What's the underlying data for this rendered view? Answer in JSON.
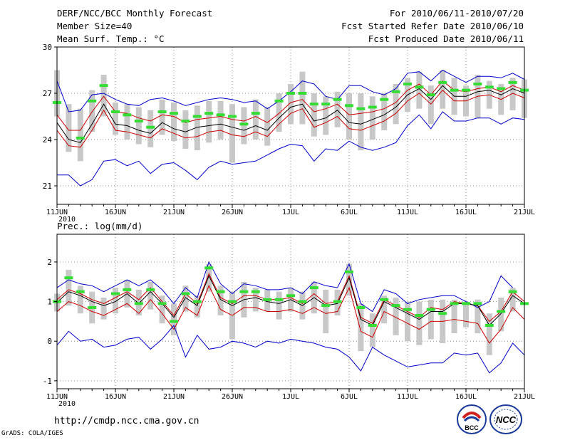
{
  "header": {
    "title": "DERF/NCC/BCC Monthly Forecast",
    "member": "Member Size=40",
    "var1": "Mean Surf. Temp.: °C",
    "period": "For 2010/06/11-2010/07/20",
    "started": "Fcst Started Refer Date 2010/06/10",
    "produced": "Fcst Produced Date 2010/06/11"
  },
  "footer": {
    "url": "http://cmdp.ncc.cma.gov.cn",
    "grads": "GrADS: COLA/IGES",
    "logo1": "BCC",
    "logo2": "NCC"
  },
  "colors": {
    "max": "#0000cc",
    "mean": "#000000",
    "p_hi": "#cc0000",
    "obs": "#33dd33",
    "box": "#c8c8c8",
    "grid": "#888888"
  },
  "chart_data": [
    {
      "type": "line",
      "title": "Mean Surf. Temp.: °C",
      "xlabel": "",
      "ylabel": "°C",
      "ylim": [
        19.8,
        30
      ],
      "yticks": [
        21,
        24,
        27,
        30
      ],
      "xlim": [
        1,
        41
      ],
      "xticks": [
        1,
        6,
        11,
        16,
        21,
        26,
        31,
        36,
        41
      ],
      "xtick_labels": [
        "11JUN",
        "16JUN",
        "21JUN",
        "26JUN",
        "1JUL",
        "6JUL",
        "11JUL",
        "16JUL",
        "21JUL"
      ],
      "year_label": "2010",
      "grid": true,
      "series": [
        {
          "name": "max",
          "values": [
            27.8,
            25.8,
            25.9,
            26.9,
            27.0,
            26.6,
            26.3,
            26.2,
            26.6,
            26.7,
            26.5,
            26.2,
            26.4,
            26.6,
            26.7,
            26.6,
            26.4,
            26.5,
            26.0,
            26.5,
            27.1,
            27.8,
            27.6,
            26.8,
            26.6,
            27.5,
            27.5,
            27.1,
            26.9,
            27.3,
            28.3,
            28.4,
            27.8,
            28.5,
            28.1,
            27.7,
            28.1,
            28.1,
            28.0,
            28.3,
            27.9
          ]
        },
        {
          "name": "p_hi",
          "values": [
            25.6,
            24.6,
            24.6,
            25.8,
            26.8,
            25.8,
            25.7,
            25.4,
            25.2,
            25.6,
            25.5,
            25.1,
            25.3,
            25.4,
            25.5,
            25.3,
            25.2,
            25.5,
            25.1,
            25.7,
            26.4,
            26.6,
            25.8,
            26.0,
            26.3,
            25.6,
            25.7,
            25.8,
            26.0,
            26.4,
            27.2,
            27.6,
            26.9,
            27.8,
            27.2,
            27.1,
            27.3,
            27.4,
            27.1,
            27.5,
            27.2
          ]
        },
        {
          "name": "mean",
          "values": [
            25.1,
            24.0,
            23.8,
            25.0,
            26.3,
            25.0,
            24.9,
            24.6,
            24.4,
            25.1,
            24.7,
            24.5,
            24.8,
            24.9,
            25.0,
            24.8,
            24.6,
            24.9,
            24.6,
            25.4,
            26.1,
            26.3,
            25.2,
            25.4,
            25.9,
            25.1,
            25.0,
            25.3,
            25.6,
            26.1,
            26.9,
            27.3,
            26.6,
            27.5,
            26.8,
            26.8,
            27.1,
            27.2,
            26.9,
            27.3,
            27.0
          ]
        },
        {
          "name": "p_lo",
          "values": [
            24.6,
            23.6,
            23.5,
            24.6,
            25.9,
            24.6,
            24.5,
            24.3,
            24.1,
            24.7,
            24.4,
            24.1,
            24.2,
            24.5,
            24.6,
            24.3,
            24.2,
            24.5,
            24.2,
            25.0,
            25.7,
            26.0,
            24.8,
            25.1,
            25.5,
            24.7,
            24.6,
            24.9,
            25.2,
            25.7,
            26.5,
            27.0,
            26.3,
            27.2,
            26.5,
            26.5,
            26.8,
            26.9,
            26.6,
            27.0,
            26.7
          ]
        },
        {
          "name": "min",
          "values": [
            21.7,
            21.7,
            21.0,
            21.4,
            22.6,
            22.7,
            22.3,
            22.6,
            21.8,
            22.4,
            22.5,
            22.0,
            21.4,
            22.2,
            22.6,
            22.4,
            22.5,
            22.6,
            23.0,
            23.4,
            23.7,
            23.6,
            22.6,
            23.4,
            23.3,
            23.9,
            23.5,
            23.3,
            23.5,
            23.8,
            24.9,
            25.6,
            24.7,
            25.8,
            25.2,
            25.2,
            25.4,
            25.4,
            25.0,
            25.4,
            25.3
          ]
        },
        {
          "name": "obs",
          "values": [
            26.4,
            null,
            24.1,
            26.5,
            27.5,
            25.8,
            25.6,
            25.2,
            24.8,
            25.8,
            25.7,
            25.2,
            25.5,
            25.7,
            25.6,
            25.5,
            25.0,
            25.7,
            null,
            26.5,
            27.0,
            27.0,
            26.3,
            26.3,
            26.6,
            26.2,
            26.0,
            26.1,
            26.6,
            27.1,
            27.6,
            27.4,
            26.9,
            27.7,
            27.2,
            27.2,
            27.6,
            27.4,
            27.3,
            27.7,
            27.2
          ]
        }
      ],
      "box_low": [
        25.5,
        23.2,
        22.6,
        24.5,
        25.5,
        24.3,
        24.0,
        23.7,
        23.5,
        24.3,
        23.9,
        23.4,
        23.3,
        23.8,
        24.0,
        22.5,
        23.7,
        24.0,
        23.6,
        24.5,
        25.0,
        25.0,
        24.2,
        24.3,
        24.8,
        24.0,
        23.3,
        24.0,
        24.6,
        25.0,
        25.8,
        26.0,
        25.0,
        26.0,
        25.6,
        25.5,
        25.4,
        26.0,
        25.6,
        25.9,
        25.4
      ],
      "box_high": [
        28.5,
        26.3,
        26.0,
        27.2,
        28.2,
        26.4,
        26.3,
        26.1,
        25.9,
        26.6,
        26.4,
        25.9,
        26.2,
        26.5,
        26.5,
        26.3,
        26.1,
        26.6,
        26.1,
        27.0,
        27.6,
        28.4,
        27.0,
        26.8,
        27.1,
        27.0,
        27.0,
        26.8,
        27.0,
        27.6,
        28.0,
        28.4,
        27.5,
        28.5,
        28.0,
        27.5,
        28.2,
        27.8,
        27.6,
        28.0,
        27.9
      ]
    },
    {
      "type": "line",
      "title": "Prec.: log(mm/d)",
      "xlabel": "",
      "ylabel": "log(mm/d)",
      "ylim": [
        -1.2,
        2.7
      ],
      "yticks": [
        -1,
        0,
        1,
        2
      ],
      "xlim": [
        1,
        41
      ],
      "xticks": [
        1,
        6,
        11,
        16,
        21,
        26,
        31,
        36,
        41
      ],
      "xtick_labels": [
        "11JUN",
        "16JUN",
        "21JUN",
        "26JUN",
        "1JUL",
        "6JUL",
        "11JUL",
        "16JUL",
        "21JUL"
      ],
      "year_label": "2010",
      "grid": true,
      "series": [
        {
          "name": "max",
          "values": [
            1.35,
            1.55,
            1.45,
            1.4,
            1.25,
            1.4,
            1.55,
            1.4,
            1.55,
            1.3,
            0.95,
            1.35,
            1.1,
            2.0,
            1.45,
            1.2,
            1.45,
            1.4,
            1.3,
            1.3,
            1.35,
            1.2,
            1.5,
            1.4,
            1.35,
            1.95,
            0.95,
            0.75,
            1.3,
            1.2,
            0.95,
            1.05,
            1.1,
            1.15,
            1.15,
            1.0,
            0.85,
            1.0,
            1.65,
            1.35
          ]
        },
        {
          "name": "p_hi",
          "values": [
            1.05,
            1.3,
            1.2,
            1.05,
            0.95,
            1.1,
            1.25,
            1.05,
            1.35,
            1.0,
            0.65,
            1.2,
            0.95,
            1.7,
            1.1,
            0.95,
            1.15,
            1.15,
            1.05,
            1.05,
            1.1,
            0.95,
            1.2,
            0.95,
            1.0,
            1.65,
            0.6,
            0.45,
            1.05,
            0.9,
            0.75,
            0.6,
            0.85,
            0.8,
            1.0,
            0.95,
            0.9,
            0.5,
            0.75,
            1.25,
            1.0
          ]
        },
        {
          "name": "mean",
          "values": [
            0.98,
            1.25,
            1.15,
            1.0,
            0.9,
            1.0,
            1.2,
            0.95,
            1.25,
            0.95,
            0.6,
            1.1,
            0.9,
            1.65,
            1.05,
            0.9,
            1.05,
            1.1,
            1.0,
            0.95,
            1.05,
            0.9,
            1.1,
            0.9,
            0.95,
            1.6,
            0.55,
            0.4,
            1.0,
            0.85,
            0.7,
            0.55,
            0.75,
            0.75,
            0.95,
            0.95,
            0.9,
            0.4,
            0.7,
            1.15,
            0.95
          ]
        },
        {
          "name": "p_lo",
          "values": [
            0.75,
            1.0,
            0.9,
            0.75,
            0.65,
            0.8,
            0.95,
            0.7,
            1.05,
            0.7,
            0.3,
            0.85,
            0.65,
            1.4,
            0.8,
            0.65,
            0.85,
            0.85,
            0.75,
            0.75,
            0.8,
            0.7,
            0.85,
            0.7,
            0.75,
            1.35,
            0.25,
            0.1,
            0.75,
            0.6,
            0.45,
            0.3,
            0.5,
            0.5,
            0.55,
            0.5,
            0.45,
            -0.05,
            0.3,
            0.85,
            0.55
          ]
        },
        {
          "name": "min",
          "values": [
            -0.1,
            0.25,
            0.0,
            0.05,
            -0.15,
            -0.1,
            0.05,
            0.1,
            -0.2,
            0.05,
            0.4,
            -0.4,
            0.15,
            -0.2,
            -0.15,
            0.0,
            -0.05,
            -0.15,
            0.0,
            -0.05,
            0.05,
            0.0,
            -0.05,
            -0.15,
            -0.2,
            -0.4,
            -0.75,
            -0.15,
            -0.35,
            -0.5,
            -0.65,
            -0.6,
            -0.55,
            -0.55,
            -0.3,
            -0.35,
            -0.3,
            -0.8,
            -0.55,
            -0.05,
            -0.35
          ]
        },
        {
          "name": "obs",
          "values": [
            1.0,
            1.6,
            1.25,
            0.85,
            null,
            1.2,
            1.3,
            0.95,
            1.3,
            0.95,
            0.5,
            1.2,
            1.0,
            1.85,
            1.25,
            1.0,
            1.25,
            1.25,
            1.05,
            1.05,
            1.15,
            1.0,
            1.35,
            0.9,
            1.0,
            1.75,
            0.85,
            0.4,
            1.05,
            0.9,
            0.8,
            0.65,
            0.8,
            0.7,
            0.95,
            0.95,
            0.95,
            0.4,
            0.75,
            1.25,
            0.95
          ]
        }
      ],
      "box_low": [
        0.75,
        0.9,
        0.7,
        0.45,
        0.55,
        0.7,
        0.85,
        0.65,
        0.8,
        0.45,
        0.15,
        0.75,
        0.6,
        1.25,
        0.65,
        0.05,
        0.6,
        0.75,
        0.75,
        0.55,
        0.75,
        0.55,
        0.7,
        0.2,
        0.65,
        1.15,
        -0.25,
        -0.15,
        0.45,
        0.15,
        0.0,
        -0.1,
        0.05,
        -0.05,
        0.2,
        0.35,
        0.2,
        -0.35,
        0.25,
        0.75,
        0.15
      ],
      "box_high": [
        1.2,
        1.8,
        1.4,
        1.25,
        1.1,
        1.35,
        1.55,
        1.3,
        1.5,
        1.15,
        0.95,
        1.4,
        1.15,
        1.95,
        1.4,
        1.25,
        1.5,
        1.35,
        1.3,
        1.25,
        1.35,
        1.25,
        1.5,
        1.3,
        1.3,
        1.95,
        0.95,
        0.7,
        1.15,
        1.1,
        1.0,
        1.0,
        1.05,
        1.05,
        1.05,
        1.0,
        1.05,
        0.7,
        1.1,
        1.35,
        1.1
      ]
    }
  ]
}
